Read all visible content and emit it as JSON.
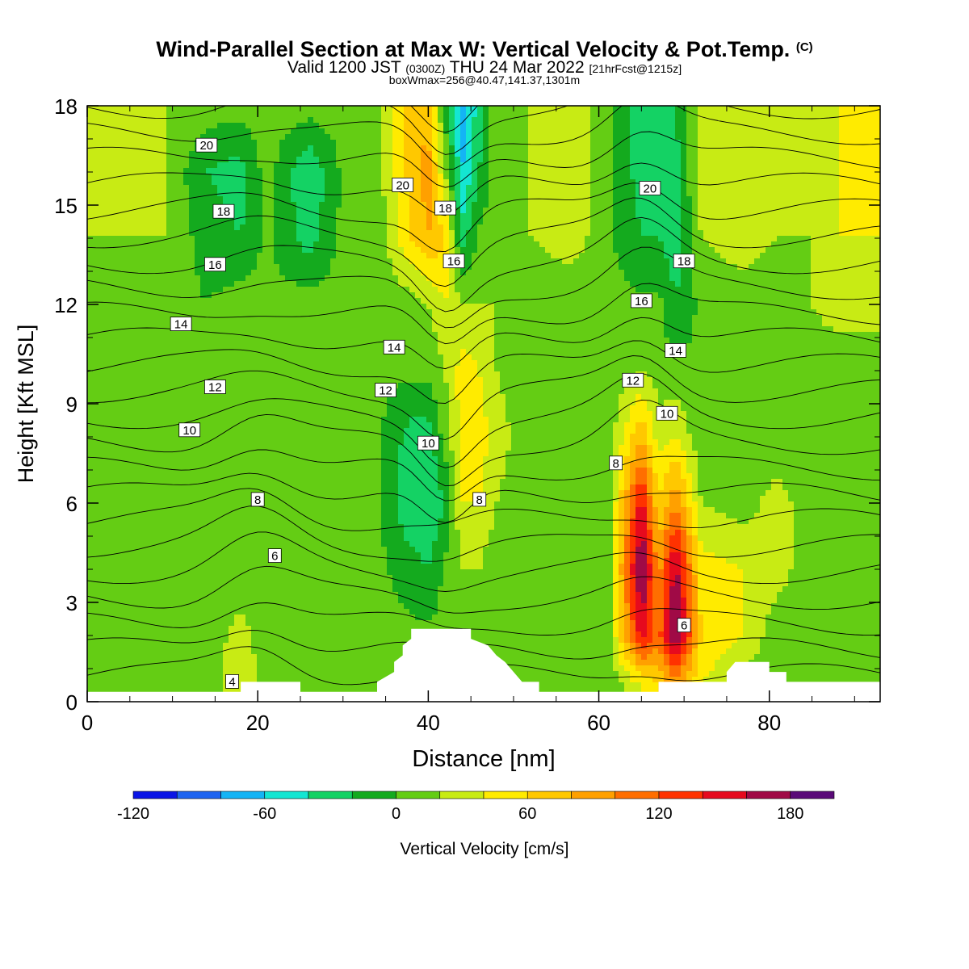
{
  "header": {
    "title": "Wind-Parallel Section at Max W: Vertical Velocity & Pot.Temp.",
    "copyright": "(C)",
    "valid_prefix": "Valid 1200 JST",
    "valid_utc": "(0300Z)",
    "valid_date": "THU 24 Mar 2022",
    "forecast": "[21hrFcst@1215z]",
    "boxwmax": "boxWmax=256@40.47,141.37,1301m"
  },
  "chart_data": {
    "type": "heatmap",
    "xlabel": "Distance [nm]",
    "ylabel": "Height [Kft MSL]",
    "xlim": [
      0,
      93
    ],
    "ylim": [
      0,
      18
    ],
    "x_ticks": [
      0,
      20,
      40,
      60,
      80
    ],
    "y_ticks": [
      0,
      3,
      6,
      9,
      12,
      15,
      18
    ],
    "colorbar": {
      "label": "Vertical Velocity [cm/s]",
      "levels": [
        -120,
        -100,
        -80,
        -60,
        -40,
        -20,
        0,
        20,
        40,
        60,
        80,
        100,
        120,
        140,
        160,
        180,
        200
      ],
      "tick_labels": [
        "-120",
        "-60",
        "0",
        "60",
        "120",
        "180"
      ],
      "tick_values": [
        -120,
        -60,
        0,
        60,
        120,
        180
      ],
      "colors": [
        "#0a14e6",
        "#1e64f0",
        "#14b4f5",
        "#14e6d2",
        "#14d264",
        "#14aa1e",
        "#64cd14",
        "#c8eb14",
        "#ffeb00",
        "#ffc800",
        "#ffa000",
        "#ff6e00",
        "#ff3200",
        "#e60a1e",
        "#a00a46",
        "#5a0a78"
      ]
    },
    "columns": [
      {
        "x": 0,
        "w": [
          5,
          5,
          5,
          10,
          10,
          15,
          20,
          20,
          20,
          20
        ]
      },
      {
        "x": 4,
        "w": [
          10,
          5,
          5,
          5,
          5,
          10,
          15,
          20,
          20,
          20
        ]
      },
      {
        "x": 9,
        "w": [
          5,
          5,
          5,
          5,
          5,
          10,
          15,
          20,
          20,
          20
        ]
      },
      {
        "x": 14,
        "w": [
          5,
          5,
          5,
          5,
          5,
          5,
          0,
          -10,
          -20,
          10
        ]
      },
      {
        "x": 18,
        "w": [
          40,
          30,
          5,
          5,
          5,
          5,
          10,
          -20,
          -30,
          10
        ]
      },
      {
        "x": 21,
        "w": [
          10,
          5,
          5,
          5,
          5,
          5,
          5,
          5,
          10,
          10
        ]
      },
      {
        "x": 26,
        "w": [
          5,
          5,
          5,
          5,
          5,
          5,
          10,
          -30,
          -40,
          10
        ]
      },
      {
        "x": 30,
        "w": [
          5,
          5,
          10,
          5,
          5,
          5,
          10,
          5,
          5,
          10
        ]
      },
      {
        "x": 34,
        "w": [
          5,
          5,
          5,
          5,
          5,
          5,
          10,
          5,
          10,
          10
        ]
      },
      {
        "x": 38,
        "w": [
          5,
          5,
          -10,
          -40,
          -30,
          5,
          10,
          60,
          70,
          80
        ]
      },
      {
        "x": 40,
        "w": [
          5,
          5,
          -20,
          -40,
          -30,
          5,
          20,
          80,
          90,
          70
        ]
      },
      {
        "x": 42,
        "w": [
          5,
          5,
          5,
          -20,
          10,
          20,
          40,
          60,
          20,
          -10
        ]
      },
      {
        "x": 44,
        "w": [
          5,
          5,
          20,
          40,
          50,
          50,
          20,
          -30,
          -60,
          -70
        ]
      },
      {
        "x": 46,
        "w": [
          5,
          5,
          20,
          40,
          50,
          40,
          20,
          5,
          -20,
          -30
        ]
      },
      {
        "x": 48,
        "w": [
          5,
          5,
          5,
          20,
          30,
          20,
          20,
          10,
          10,
          20
        ]
      },
      {
        "x": 52,
        "w": [
          5,
          5,
          5,
          5,
          5,
          5,
          5,
          20,
          20,
          20
        ]
      },
      {
        "x": 57,
        "w": [
          5,
          5,
          5,
          5,
          5,
          5,
          5,
          30,
          40,
          40
        ]
      },
      {
        "x": 61,
        "w": [
          5,
          5,
          5,
          5,
          5,
          5,
          5,
          5,
          5,
          5
        ]
      },
      {
        "x": 65,
        "w": [
          40,
          150,
          190,
          150,
          80,
          20,
          5,
          -20,
          -30,
          -30
        ]
      },
      {
        "x": 67,
        "w": [
          60,
          110,
          90,
          60,
          30,
          10,
          5,
          -20,
          -30,
          -30
        ]
      },
      {
        "x": 69,
        "w": [
          90,
          190,
          170,
          100,
          40,
          5,
          -20,
          -30,
          -30,
          -20
        ]
      },
      {
        "x": 72,
        "w": [
          40,
          60,
          50,
          20,
          5,
          5,
          5,
          20,
          30,
          30
        ]
      },
      {
        "x": 77,
        "w": [
          10,
          40,
          40,
          10,
          5,
          5,
          10,
          30,
          40,
          40
        ]
      },
      {
        "x": 81,
        "w": [
          5,
          5,
          30,
          30,
          5,
          5,
          5,
          20,
          30,
          30
        ]
      },
      {
        "x": 85,
        "w": [
          5,
          5,
          5,
          5,
          5,
          10,
          20,
          20,
          20,
          20
        ]
      },
      {
        "x": 88,
        "w": [
          10,
          10,
          5,
          10,
          5,
          5,
          30,
          40,
          40,
          40
        ]
      },
      {
        "x": 93,
        "w": [
          10,
          10,
          5,
          10,
          5,
          5,
          30,
          40,
          40,
          40
        ]
      }
    ],
    "column_heights": [
      0.5,
      2,
      4,
      6,
      8,
      10,
      12,
      14,
      16,
      18
    ],
    "terrain": [
      [
        0,
        0.3
      ],
      [
        25,
        0.3
      ],
      [
        25,
        0.6
      ],
      [
        19,
        0.6
      ],
      [
        19,
        0.3
      ],
      [
        0,
        0.3
      ]
    ],
    "terrain_profile": [
      [
        0,
        0.3
      ],
      [
        18,
        0.3
      ],
      [
        18,
        0.6
      ],
      [
        25,
        0.6
      ],
      [
        25,
        0.3
      ],
      [
        34,
        0.3
      ],
      [
        34,
        0.6
      ],
      [
        36,
        0.9
      ],
      [
        36,
        1.2
      ],
      [
        37,
        1.4
      ],
      [
        37,
        1.7
      ],
      [
        38,
        1.9
      ],
      [
        38,
        2.2
      ],
      [
        45,
        2.2
      ],
      [
        45,
        1.9
      ],
      [
        47,
        1.7
      ],
      [
        48,
        1.4
      ],
      [
        49,
        1.2
      ],
      [
        50,
        0.9
      ],
      [
        51,
        0.6
      ],
      [
        53,
        0.6
      ],
      [
        53,
        0.3
      ],
      [
        67,
        0.3
      ],
      [
        67,
        0.6
      ],
      [
        75,
        0.6
      ],
      [
        75,
        0.9
      ],
      [
        76,
        1.2
      ],
      [
        80,
        1.2
      ],
      [
        80,
        0.9
      ],
      [
        82,
        0.9
      ],
      [
        82,
        0.6
      ],
      [
        93,
        0.6
      ],
      [
        93,
        0.3
      ]
    ],
    "isentropes": {
      "levels": [
        4,
        6,
        8,
        10,
        12,
        14,
        16,
        18,
        20
      ],
      "labels": [
        {
          "text": "20",
          "x": 14,
          "y": 16.8
        },
        {
          "text": "18",
          "x": 16,
          "y": 14.8
        },
        {
          "text": "16",
          "x": 15,
          "y": 13.2
        },
        {
          "text": "14",
          "x": 11,
          "y": 11.4
        },
        {
          "text": "12",
          "x": 15,
          "y": 9.5
        },
        {
          "text": "10",
          "x": 12,
          "y": 8.2
        },
        {
          "text": "8",
          "x": 20,
          "y": 6.1
        },
        {
          "text": "6",
          "x": 22,
          "y": 4.4
        },
        {
          "text": "4",
          "x": 17,
          "y": 0.6
        },
        {
          "text": "20",
          "x": 37,
          "y": 15.6
        },
        {
          "text": "18",
          "x": 42,
          "y": 14.9
        },
        {
          "text": "16",
          "x": 43,
          "y": 13.3
        },
        {
          "text": "14",
          "x": 36,
          "y": 10.7
        },
        {
          "text": "12",
          "x": 35,
          "y": 9.4
        },
        {
          "text": "10",
          "x": 40,
          "y": 7.8
        },
        {
          "text": "8",
          "x": 46,
          "y": 6.1
        },
        {
          "text": "20",
          "x": 66,
          "y": 15.5
        },
        {
          "text": "18",
          "x": 70,
          "y": 13.3
        },
        {
          "text": "16",
          "x": 65,
          "y": 12.1
        },
        {
          "text": "14",
          "x": 69,
          "y": 10.6
        },
        {
          "text": "12",
          "x": 64,
          "y": 9.7
        },
        {
          "text": "10",
          "x": 68,
          "y": 8.7
        },
        {
          "text": "8",
          "x": 62,
          "y": 7.2
        },
        {
          "text": "6",
          "x": 70,
          "y": 2.3
        }
      ]
    }
  }
}
